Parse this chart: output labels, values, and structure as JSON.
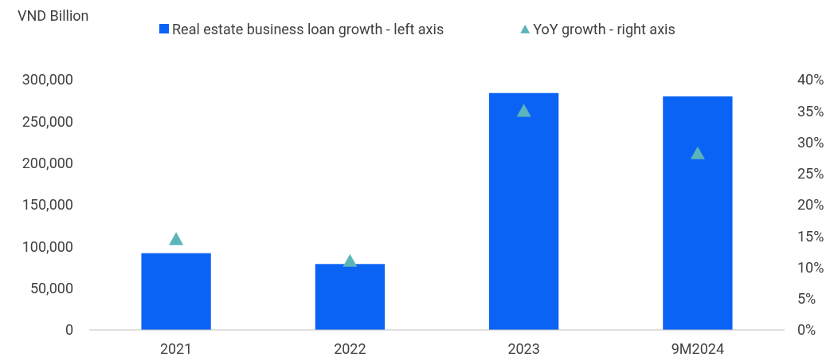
{
  "chart_data": {
    "type": "bar",
    "ylabel": "VND Billion",
    "categories": [
      "2021",
      "2022",
      "2023",
      "9M2024"
    ],
    "series": [
      {
        "name": "Real estate business loan growth - left axis",
        "color": "#0b63f6",
        "values": [
          92000,
          79000,
          284000,
          280000
        ]
      },
      {
        "name": "YoY growth - right axis",
        "type": "scatter",
        "axis": "y2",
        "marker": "triangle",
        "color": "#5bb5b8",
        "values": [
          14.5,
          11.0,
          35.0,
          28.2
        ]
      }
    ],
    "ylim": [
      0,
      300000
    ],
    "yticks": [
      {
        "value": 0,
        "label": "0"
      },
      {
        "value": 50000,
        "label": "50,000"
      },
      {
        "value": 100000,
        "label": "100,000"
      },
      {
        "value": 150000,
        "label": "150,000"
      },
      {
        "value": 200000,
        "label": "200,000"
      },
      {
        "value": 250000,
        "label": "250,000"
      },
      {
        "value": 300000,
        "label": "300,000"
      }
    ],
    "y2lim": [
      0,
      40
    ],
    "y2ticks": [
      {
        "value": 0,
        "label": "0%"
      },
      {
        "value": 5,
        "label": "5%"
      },
      {
        "value": 10,
        "label": "10%"
      },
      {
        "value": 15,
        "label": "15%"
      },
      {
        "value": 20,
        "label": "20%"
      },
      {
        "value": 25,
        "label": "25%"
      },
      {
        "value": 30,
        "label": "30%"
      },
      {
        "value": 35,
        "label": "35%"
      },
      {
        "value": 40,
        "label": "40%"
      }
    ],
    "grid": false,
    "legend": "top"
  }
}
